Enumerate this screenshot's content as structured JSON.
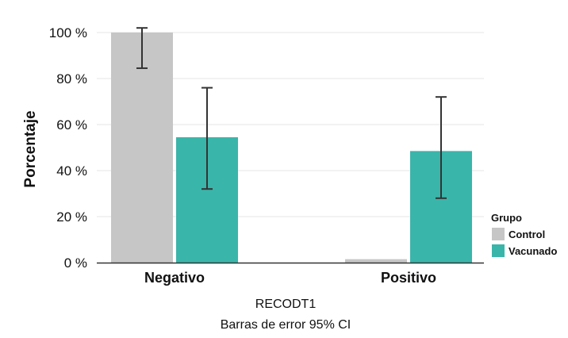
{
  "chart_data": {
    "type": "bar",
    "ylabel": "Porcentaje",
    "xlabel": "RECODT1",
    "subtitle": "Barras de error 95% CI",
    "ylim": [
      0,
      100
    ],
    "yticks": [
      {
        "value": 0,
        "label": "0 %"
      },
      {
        "value": 20,
        "label": "20 %"
      },
      {
        "value": 40,
        "label": "40 %"
      },
      {
        "value": 60,
        "label": "60 %"
      },
      {
        "value": 80,
        "label": "80 %"
      },
      {
        "value": 100,
        "label": "100 %"
      }
    ],
    "categories": [
      "Negativo",
      "Positivo"
    ],
    "legend": {
      "title": "Grupo",
      "position": "right"
    },
    "grid": true,
    "series": [
      {
        "name": "Control",
        "color": "#c6c6c6",
        "values": [
          100,
          1.5
        ],
        "error_low": [
          84.5,
          null
        ],
        "error_high": [
          102,
          null
        ]
      },
      {
        "name": "Vacunado",
        "color": "#3ab5aa",
        "values": [
          54.5,
          48.5
        ],
        "error_low": [
          32,
          28
        ],
        "error_high": [
          76,
          72
        ]
      }
    ]
  }
}
